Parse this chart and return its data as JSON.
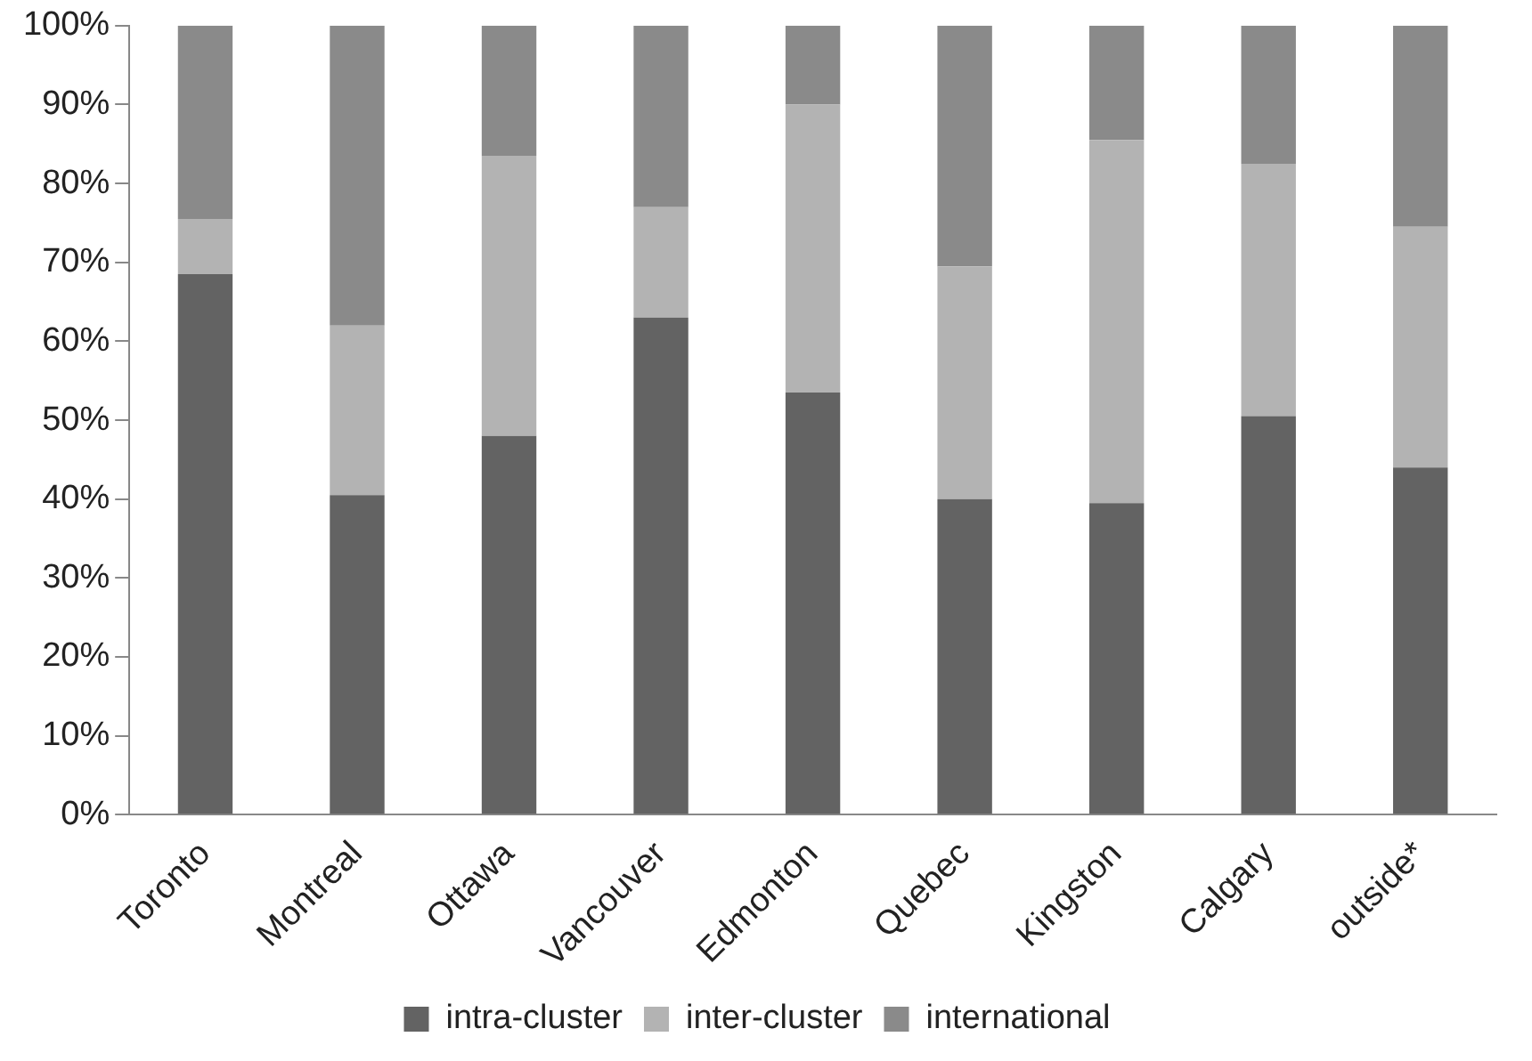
{
  "chart_data": {
    "type": "bar",
    "stacked": true,
    "categories": [
      "Toronto",
      "Montreal",
      "Ottawa",
      "Vancouver",
      "Edmonton",
      "Quebec",
      "Kingston",
      "Calgary",
      "outside*"
    ],
    "series": [
      {
        "name": "intra-cluster",
        "color": "#636363",
        "values": [
          68.5,
          40.5,
          48,
          63,
          53.5,
          40,
          39.5,
          50.5,
          44
        ]
      },
      {
        "name": "inter-cluster",
        "color": "#b3b3b3",
        "values": [
          7,
          21.5,
          35.5,
          14,
          36.5,
          29.5,
          46,
          32,
          30.5
        ]
      },
      {
        "name": "international",
        "color": "#8a8a8a",
        "values": [
          24.5,
          38,
          16.5,
          23,
          10,
          30.5,
          14.5,
          17.5,
          25.5
        ]
      }
    ],
    "ylim": [
      0,
      100
    ],
    "yticks": [
      {
        "value": 0,
        "label": "0%"
      },
      {
        "value": 10,
        "label": "10%"
      },
      {
        "value": 20,
        "label": "20%"
      },
      {
        "value": 30,
        "label": "30%"
      },
      {
        "value": 40,
        "label": "40%"
      },
      {
        "value": 50,
        "label": "50%"
      },
      {
        "value": 60,
        "label": "60%"
      },
      {
        "value": 70,
        "label": "70%"
      },
      {
        "value": 80,
        "label": "80%"
      },
      {
        "value": 90,
        "label": "90%"
      },
      {
        "value": 100,
        "label": "100%"
      }
    ],
    "grid": false,
    "legend": "bottom"
  }
}
